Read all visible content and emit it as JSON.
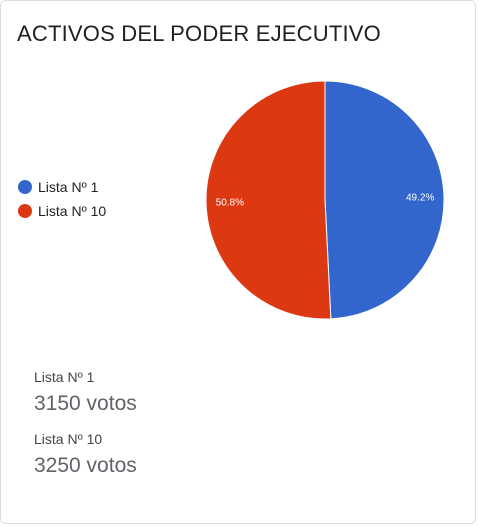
{
  "title": "ACTIVOS DEL PODER EJECUTIVO",
  "chart_data": {
    "type": "pie",
    "categories": [
      "Lista Nº 1",
      "Lista Nº 10"
    ],
    "values": [
      3150,
      3250
    ],
    "percent_labels": [
      "49.2%",
      "50.8%"
    ],
    "colors": [
      "#3366cc",
      "#dc3912"
    ],
    "legend_position": "left"
  },
  "stats": [
    {
      "name": "Lista Nº 1",
      "value": "3150 votos"
    },
    {
      "name": "Lista Nº 10",
      "value": "3250 votos"
    }
  ]
}
